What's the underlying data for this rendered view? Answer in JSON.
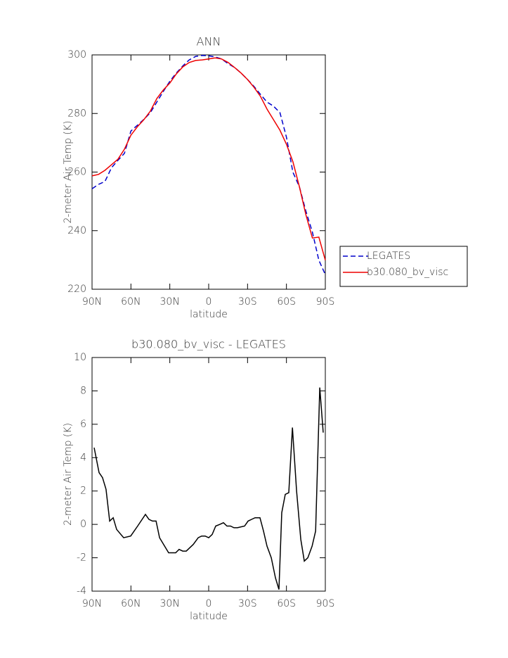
{
  "chart_data": [
    {
      "type": "line",
      "title": "ANN",
      "xlabel": "latitude",
      "ylabel": "2-meter Air Temp (K)",
      "x": [
        90,
        85,
        80,
        75,
        70,
        65,
        60,
        55,
        50,
        45,
        40,
        35,
        30,
        25,
        20,
        15,
        10,
        5,
        0,
        -5,
        -10,
        -15,
        -20,
        -25,
        -30,
        -35,
        -40,
        -45,
        -50,
        -55,
        -60,
        -65,
        -70,
        -75,
        -80,
        -85,
        -90
      ],
      "series": [
        {
          "name": "LEGATES",
          "color": "#0000cc",
          "line_style": "dashed",
          "values": [
            254.3,
            255.8,
            256.8,
            261.5,
            264,
            266.4,
            274,
            276,
            278,
            280.3,
            283.9,
            287.5,
            291,
            293.8,
            296.2,
            298.3,
            299.5,
            299.8,
            299.7,
            299.3,
            298.6,
            297,
            295.7,
            293.8,
            291.6,
            289.2,
            286.5,
            283.9,
            282.5,
            280.3,
            271.9,
            259.9,
            255,
            246.7,
            239.5,
            229.9,
            225
          ]
        },
        {
          "name": "b30.080_bv_visc",
          "color": "#ee0000",
          "line_style": "solid",
          "values": [
            258.7,
            259.2,
            260.6,
            262.5,
            264.4,
            267.8,
            272.6,
            275.5,
            277.9,
            280.8,
            285.1,
            288,
            290.4,
            293.5,
            295.9,
            297.4,
            298.1,
            298.3,
            298.6,
            299,
            298.6,
            297.4,
            295.7,
            293.8,
            291.6,
            288.9,
            285.8,
            281.5,
            277.9,
            274.3,
            269.5,
            263.5,
            255,
            245.5,
            237.5,
            237.8,
            229.9
          ]
        }
      ],
      "xlim": [
        90,
        -90
      ],
      "xticks": [
        {
          "value": 90,
          "label": "90N"
        },
        {
          "value": 60,
          "label": "60N"
        },
        {
          "value": 30,
          "label": "30N"
        },
        0,
        {
          "value": -30,
          "label": "30S"
        },
        {
          "value": -60,
          "label": "60S"
        },
        {
          "value": -90,
          "label": "90S"
        }
      ],
      "ylim": [
        220,
        300
      ],
      "yticks": [
        220,
        240,
        260,
        280,
        300
      ],
      "legend": "right"
    },
    {
      "type": "line",
      "title": "b30.080_bv_visc - LEGATES",
      "xlabel": "latitude",
      "ylabel": "2-meter Air Temp (K)",
      "x": [
        88.4,
        84.6,
        81.9,
        79.2,
        76.4,
        73.7,
        71.0,
        65.6,
        60.2,
        54.8,
        48.8,
        46.1,
        43.4,
        40.6,
        37.9,
        30.9,
        25.5,
        22.8,
        20.0,
        17.3,
        14.6,
        11.9,
        8.1,
        5.4,
        2.7,
        0,
        -2.7,
        -5.4,
        -8.7,
        -11.4,
        -14.1,
        -16.8,
        -19.5,
        -22.2,
        -27.7,
        -30.4,
        -33.1,
        -35.8,
        -39.6,
        -42.3,
        -45.0,
        -48.3,
        -51.5,
        -54.2,
        -56.4,
        -59.1,
        -61.8,
        -64.6,
        -67.8,
        -71.1,
        -73.8,
        -76.5,
        -79.8,
        -82.5,
        -85.7,
        -88.4
      ],
      "series": [
        {
          "color": "#000000",
          "line_style": "solid",
          "values": [
            4.6,
            3.1,
            2.8,
            2.1,
            0.2,
            0.4,
            -0.3,
            -0.8,
            -0.7,
            -0.1,
            0.6,
            0.3,
            0.2,
            0.2,
            -0.8,
            -1.7,
            -1.7,
            -1.5,
            -1.6,
            -1.6,
            -1.4,
            -1.2,
            -0.8,
            -0.7,
            -0.7,
            -0.8,
            -0.6,
            -0.1,
            0.0,
            0.1,
            -0.1,
            -0.1,
            -0.2,
            -0.2,
            -0.1,
            0.2,
            0.3,
            0.4,
            0.4,
            -0.4,
            -1.3,
            -2.0,
            -3.2,
            -3.9,
            0.7,
            1.8,
            1.9,
            5.8,
            2.0,
            -0.9,
            -2.2,
            -2.0,
            -1.3,
            -0.4,
            8.2,
            5.5
          ]
        }
      ],
      "xlim": [
        90,
        -90
      ],
      "xticks": [
        {
          "value": 90,
          "label": "90N"
        },
        {
          "value": 60,
          "label": "60N"
        },
        {
          "value": 30,
          "label": "30N"
        },
        0,
        {
          "value": -30,
          "label": "30S"
        },
        {
          "value": -60,
          "label": "60S"
        },
        {
          "value": -90,
          "label": "90S"
        }
      ],
      "ylim": [
        -4,
        10
      ],
      "yticks": [
        -4,
        -2,
        0,
        2,
        4,
        6,
        8,
        10
      ]
    }
  ]
}
